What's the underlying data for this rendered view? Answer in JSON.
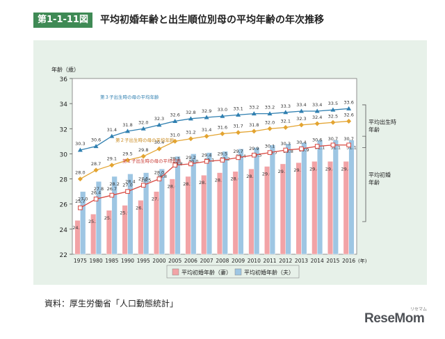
{
  "header": {
    "figure_number": "第1-1-11図",
    "title": "平均初婚年齢と出生順位別母の平均年齢の年次推移"
  },
  "source_note": "資料：厚生労働省「人口動態統計」",
  "brand": {
    "name": "ReseMom",
    "sub": "リセマム"
  },
  "chart_data": {
    "type": "bar+line",
    "ylabel": "年齢（歳）",
    "xunit": "(年)",
    "ylim": [
      22,
      36
    ],
    "yticks": [
      22,
      24,
      26,
      28,
      30,
      32,
      34,
      36
    ],
    "categories": [
      "1975",
      "1980",
      "1985",
      "1990",
      "1995",
      "2000",
      "2005",
      "2006",
      "2007",
      "2008",
      "2009",
      "2010",
      "2011",
      "2012",
      "2013",
      "2014",
      "2015",
      "2016"
    ],
    "bar_series": [
      {
        "name": "平均初婚年齢（妻）",
        "color": "#f2a3a6",
        "values": [
          24.7,
          25.2,
          25.5,
          25.9,
          26.3,
          27.0,
          28.0,
          28.2,
          28.3,
          28.5,
          28.6,
          28.8,
          29.0,
          29.2,
          29.3,
          29.4,
          29.4,
          29.4
        ]
      },
      {
        "name": "平均初婚年齢（夫）",
        "color": "#9ec6e3",
        "values": [
          27.0,
          27.8,
          28.2,
          28.4,
          28.5,
          28.8,
          29.8,
          30.0,
          30.1,
          30.2,
          30.4,
          30.5,
          30.7,
          30.8,
          30.9,
          31.1,
          31.1,
          31.1
        ]
      }
    ],
    "line_series": [
      {
        "name": "第３子出生時の母の平均年齢",
        "color": "#2f7fb0",
        "marker": "triangle",
        "values": [
          30.3,
          30.6,
          31.4,
          31.8,
          32.0,
          32.3,
          32.6,
          32.8,
          32.9,
          33.0,
          33.1,
          33.2,
          33.2,
          33.3,
          33.4,
          33.4,
          33.5,
          33.6
        ]
      },
      {
        "name": "第２子出生時の母の平均年齢",
        "color": "#e3a431",
        "marker": "diamond",
        "values": [
          28.0,
          28.7,
          29.1,
          29.5,
          29.8,
          30.4,
          31.0,
          31.2,
          31.4,
          31.6,
          31.7,
          31.8,
          32.0,
          32.1,
          32.3,
          32.4,
          32.5,
          32.6
        ]
      },
      {
        "name": "第１子出生時の母の平均年齢",
        "color": "#d9473f",
        "marker": "square",
        "values": [
          25.7,
          26.4,
          26.7,
          27.0,
          27.5,
          28.0,
          29.1,
          29.2,
          29.4,
          29.5,
          29.7,
          29.9,
          30.1,
          30.3,
          30.4,
          30.6,
          30.7,
          30.7
        ]
      }
    ],
    "line_labels": [
      "第３子出生時の母の平均年齢",
      "第２子出生時の母の平均年齢",
      "第１子出生時の母の平均年齢"
    ],
    "bracket_labels": [
      {
        "text": "平均出生時年齢",
        "lines": [
          "平均出生時",
          "年齢"
        ]
      },
      {
        "text": "平均初婚年齢",
        "lines": [
          "平均初婚",
          "年齢"
        ]
      }
    ],
    "legend_position": "bottom-center",
    "grid": false
  }
}
